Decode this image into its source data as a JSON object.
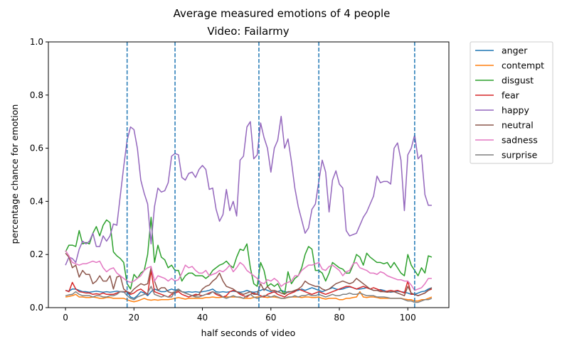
{
  "chart_data": {
    "type": "line",
    "title": "Average measured emotions of 4 people",
    "subtitle": "Video: Failarmy",
    "xlabel": "half seconds of video",
    "ylabel": "percentage chance for emotion",
    "xlim": [
      -5,
      112
    ],
    "ylim": [
      0,
      1.0
    ],
    "xticks": [
      0,
      20,
      40,
      60,
      80,
      100
    ],
    "yticks": [
      0.0,
      0.2,
      0.4,
      0.6,
      0.8,
      1.0
    ],
    "xtick_labels": [
      "0",
      "20",
      "40",
      "60",
      "80",
      "100"
    ],
    "ytick_labels": [
      "0.0",
      "0.2",
      "0.4",
      "0.6",
      "0.8",
      "1.0"
    ],
    "vlines": [
      18,
      32,
      56.5,
      74,
      102
    ],
    "vline_color": "#1f77b4",
    "grid": false,
    "legend_position": "outside-right-top",
    "x": [
      0,
      1,
      2,
      3,
      4,
      5,
      6,
      7,
      8,
      9,
      10,
      11,
      12,
      13,
      14,
      15,
      16,
      17,
      18,
      19,
      20,
      21,
      22,
      23,
      24,
      25,
      26,
      27,
      28,
      29,
      30,
      31,
      32,
      33,
      34,
      35,
      36,
      37,
      38,
      39,
      40,
      41,
      42,
      43,
      44,
      45,
      46,
      47,
      48,
      49,
      50,
      51,
      52,
      53,
      54,
      55,
      56,
      57,
      58,
      59,
      60,
      61,
      62,
      63,
      64,
      65,
      66,
      67,
      68,
      69,
      70,
      71,
      72,
      73,
      74,
      75,
      76,
      77,
      78,
      79,
      80,
      81,
      82,
      83,
      84,
      85,
      86,
      87,
      88,
      89,
      90,
      91,
      92,
      93,
      94,
      95,
      96,
      97,
      98,
      99,
      100,
      101,
      102,
      103,
      104,
      105,
      106,
      107
    ],
    "series": [
      {
        "name": "anger",
        "color": "#1f77b4",
        "values": [
          0.065,
          0.062,
          0.07,
          0.07,
          0.065,
          0.06,
          0.06,
          0.058,
          0.06,
          0.062,
          0.06,
          0.058,
          0.06,
          0.058,
          0.06,
          0.062,
          0.06,
          0.058,
          0.06,
          0.04,
          0.035,
          0.045,
          0.06,
          0.055,
          0.045,
          0.06,
          0.07,
          0.065,
          0.06,
          0.06,
          0.065,
          0.07,
          0.065,
          0.07,
          0.06,
          0.058,
          0.06,
          0.058,
          0.06,
          0.058,
          0.06,
          0.062,
          0.065,
          0.07,
          0.06,
          0.058,
          0.06,
          0.058,
          0.06,
          0.062,
          0.06,
          0.058,
          0.06,
          0.065,
          0.06,
          0.058,
          0.06,
          0.065,
          0.07,
          0.065,
          0.06,
          0.058,
          0.06,
          0.065,
          0.06,
          0.058,
          0.06,
          0.062,
          0.065,
          0.07,
          0.065,
          0.07,
          0.075,
          0.07,
          0.065,
          0.06,
          0.065,
          0.07,
          0.075,
          0.07,
          0.068,
          0.07,
          0.075,
          0.078,
          0.075,
          0.07,
          0.07,
          0.072,
          0.075,
          0.07,
          0.065,
          0.065,
          0.068,
          0.065,
          0.06,
          0.058,
          0.06,
          0.062,
          0.06,
          0.058,
          0.055,
          0.05,
          0.05,
          0.055,
          0.06,
          0.062,
          0.07,
          0.075
        ]
      },
      {
        "name": "contempt",
        "color": "#ff7f0e",
        "values": [
          0.04,
          0.042,
          0.045,
          0.05,
          0.04,
          0.04,
          0.038,
          0.038,
          0.04,
          0.038,
          0.035,
          0.035,
          0.038,
          0.038,
          0.035,
          0.035,
          0.035,
          0.035,
          0.03,
          0.025,
          0.022,
          0.025,
          0.03,
          0.035,
          0.03,
          0.028,
          0.03,
          0.028,
          0.03,
          0.03,
          0.03,
          0.032,
          0.035,
          0.038,
          0.035,
          0.032,
          0.035,
          0.035,
          0.035,
          0.035,
          0.035,
          0.038,
          0.038,
          0.04,
          0.038,
          0.038,
          0.04,
          0.04,
          0.04,
          0.04,
          0.04,
          0.038,
          0.035,
          0.035,
          0.035,
          0.038,
          0.04,
          0.04,
          0.04,
          0.038,
          0.04,
          0.04,
          0.038,
          0.035,
          0.035,
          0.038,
          0.04,
          0.04,
          0.04,
          0.038,
          0.04,
          0.04,
          0.038,
          0.038,
          0.04,
          0.035,
          0.032,
          0.035,
          0.035,
          0.035,
          0.03,
          0.03,
          0.035,
          0.035,
          0.038,
          0.04,
          0.06,
          0.04,
          0.038,
          0.04,
          0.04,
          0.038,
          0.035,
          0.035,
          0.035,
          0.035,
          0.035,
          0.035,
          0.035,
          0.032,
          0.03,
          0.03,
          0.025,
          0.025,
          0.03,
          0.03,
          0.035,
          0.04
        ]
      },
      {
        "name": "disgust",
        "color": "#2ca02c",
        "values": [
          0.21,
          0.235,
          0.235,
          0.23,
          0.29,
          0.24,
          0.245,
          0.24,
          0.28,
          0.305,
          0.27,
          0.31,
          0.33,
          0.32,
          0.21,
          0.195,
          0.185,
          0.17,
          0.09,
          0.07,
          0.125,
          0.11,
          0.13,
          0.14,
          0.2,
          0.34,
          0.17,
          0.235,
          0.19,
          0.18,
          0.15,
          0.16,
          0.14,
          0.14,
          0.1,
          0.12,
          0.13,
          0.13,
          0.12,
          0.12,
          0.12,
          0.11,
          0.12,
          0.14,
          0.15,
          0.16,
          0.165,
          0.175,
          0.16,
          0.15,
          0.19,
          0.22,
          0.215,
          0.24,
          0.15,
          0.09,
          0.08,
          0.17,
          0.14,
          0.08,
          0.09,
          0.08,
          0.09,
          0.065,
          0.05,
          0.135,
          0.09,
          0.11,
          0.12,
          0.15,
          0.2,
          0.23,
          0.22,
          0.14,
          0.14,
          0.13,
          0.1,
          0.13,
          0.17,
          0.16,
          0.15,
          0.145,
          0.13,
          0.13,
          0.16,
          0.2,
          0.19,
          0.16,
          0.205,
          0.19,
          0.18,
          0.17,
          0.17,
          0.165,
          0.17,
          0.15,
          0.17,
          0.15,
          0.13,
          0.12,
          0.2,
          0.16,
          0.14,
          0.12,
          0.15,
          0.13,
          0.195,
          0.19
        ]
      },
      {
        "name": "fear",
        "color": "#d62728",
        "values": [
          0.065,
          0.06,
          0.095,
          0.07,
          0.06,
          0.058,
          0.055,
          0.055,
          0.05,
          0.052,
          0.05,
          0.055,
          0.05,
          0.05,
          0.05,
          0.055,
          0.06,
          0.06,
          0.06,
          0.05,
          0.055,
          0.065,
          0.07,
          0.06,
          0.05,
          0.14,
          0.06,
          0.055,
          0.05,
          0.045,
          0.04,
          0.05,
          0.055,
          0.06,
          0.05,
          0.045,
          0.04,
          0.045,
          0.05,
          0.048,
          0.045,
          0.05,
          0.055,
          0.06,
          0.05,
          0.045,
          0.04,
          0.045,
          0.06,
          0.065,
          0.06,
          0.05,
          0.045,
          0.04,
          0.05,
          0.055,
          0.05,
          0.045,
          0.04,
          0.05,
          0.055,
          0.06,
          0.05,
          0.045,
          0.04,
          0.05,
          0.055,
          0.06,
          0.07,
          0.065,
          0.06,
          0.055,
          0.05,
          0.055,
          0.06,
          0.055,
          0.05,
          0.055,
          0.06,
          0.065,
          0.07,
          0.075,
          0.08,
          0.08,
          0.075,
          0.07,
          0.075,
          0.08,
          0.075,
          0.07,
          0.075,
          0.07,
          0.065,
          0.06,
          0.062,
          0.065,
          0.062,
          0.065,
          0.06,
          0.055,
          0.1,
          0.05,
          0.05,
          0.045,
          0.05,
          0.055,
          0.065,
          0.07
        ]
      },
      {
        "name": "happy",
        "color": "#9467bd",
        "values": [
          0.16,
          0.19,
          0.185,
          0.17,
          0.22,
          0.25,
          0.24,
          0.25,
          0.28,
          0.23,
          0.23,
          0.27,
          0.25,
          0.27,
          0.315,
          0.31,
          0.42,
          0.53,
          0.63,
          0.68,
          0.67,
          0.6,
          0.48,
          0.43,
          0.39,
          0.24,
          0.38,
          0.45,
          0.435,
          0.44,
          0.47,
          0.57,
          0.58,
          0.575,
          0.49,
          0.48,
          0.505,
          0.51,
          0.49,
          0.52,
          0.535,
          0.52,
          0.445,
          0.45,
          0.37,
          0.325,
          0.35,
          0.445,
          0.365,
          0.4,
          0.345,
          0.555,
          0.57,
          0.68,
          0.7,
          0.56,
          0.575,
          0.695,
          0.64,
          0.6,
          0.51,
          0.6,
          0.63,
          0.72,
          0.6,
          0.635,
          0.55,
          0.45,
          0.38,
          0.33,
          0.28,
          0.3,
          0.37,
          0.39,
          0.475,
          0.555,
          0.51,
          0.36,
          0.48,
          0.515,
          0.465,
          0.45,
          0.29,
          0.27,
          0.275,
          0.28,
          0.31,
          0.34,
          0.36,
          0.39,
          0.42,
          0.495,
          0.47,
          0.475,
          0.475,
          0.465,
          0.6,
          0.62,
          0.555,
          0.365,
          0.575,
          0.6,
          0.65,
          0.56,
          0.575,
          0.425,
          0.385,
          0.385
        ]
      },
      {
        "name": "neutral",
        "color": "#8c564b",
        "values": [
          0.205,
          0.19,
          0.15,
          0.16,
          0.115,
          0.14,
          0.125,
          0.125,
          0.09,
          0.1,
          0.12,
          0.1,
          0.1,
          0.12,
          0.07,
          0.115,
          0.12,
          0.07,
          0.06,
          0.055,
          0.07,
          0.08,
          0.09,
          0.085,
          0.09,
          0.15,
          0.1,
          0.065,
          0.075,
          0.075,
          0.06,
          0.055,
          0.06,
          0.065,
          0.06,
          0.055,
          0.05,
          0.045,
          0.045,
          0.05,
          0.07,
          0.08,
          0.085,
          0.1,
          0.11,
          0.13,
          0.1,
          0.08,
          0.075,
          0.07,
          0.06,
          0.055,
          0.05,
          0.055,
          0.06,
          0.05,
          0.05,
          0.09,
          0.065,
          0.08,
          0.065,
          0.065,
          0.06,
          0.055,
          0.05,
          0.06,
          0.06,
          0.065,
          0.07,
          0.08,
          0.1,
          0.09,
          0.085,
          0.08,
          0.08,
          0.07,
          0.065,
          0.07,
          0.08,
          0.09,
          0.095,
          0.1,
          0.095,
          0.09,
          0.095,
          0.11,
          0.1,
          0.09,
          0.08,
          0.07,
          0.065,
          0.065,
          0.06,
          0.06,
          0.058,
          0.06,
          0.06,
          0.055,
          0.05,
          0.045,
          0.08,
          0.055,
          0.05,
          0.045,
          0.05,
          0.055,
          0.065,
          0.075
        ]
      },
      {
        "name": "sadness",
        "color": "#e377c2",
        "values": [
          0.215,
          0.195,
          0.17,
          0.165,
          0.16,
          0.165,
          0.165,
          0.17,
          0.175,
          0.17,
          0.175,
          0.15,
          0.135,
          0.145,
          0.15,
          0.13,
          0.12,
          0.11,
          0.1,
          0.095,
          0.1,
          0.11,
          0.12,
          0.14,
          0.15,
          0.155,
          0.1,
          0.12,
          0.115,
          0.11,
          0.1,
          0.11,
          0.1,
          0.105,
          0.13,
          0.16,
          0.15,
          0.155,
          0.14,
          0.13,
          0.13,
          0.14,
          0.12,
          0.125,
          0.13,
          0.14,
          0.135,
          0.145,
          0.16,
          0.135,
          0.15,
          0.17,
          0.16,
          0.14,
          0.13,
          0.12,
          0.11,
          0.095,
          0.09,
          0.105,
          0.1,
          0.11,
          0.1,
          0.08,
          0.09,
          0.095,
          0.1,
          0.12,
          0.12,
          0.14,
          0.15,
          0.16,
          0.16,
          0.165,
          0.17,
          0.145,
          0.14,
          0.155,
          0.16,
          0.15,
          0.14,
          0.12,
          0.135,
          0.14,
          0.165,
          0.17,
          0.15,
          0.145,
          0.14,
          0.13,
          0.13,
          0.125,
          0.135,
          0.13,
          0.12,
          0.115,
          0.11,
          0.105,
          0.105,
          0.1,
          0.1,
          0.085,
          0.065,
          0.07,
          0.075,
          0.09,
          0.11,
          0.11
        ]
      },
      {
        "name": "surprise",
        "color": "#7f7f7f",
        "values": [
          0.045,
          0.048,
          0.05,
          0.06,
          0.05,
          0.045,
          0.045,
          0.045,
          0.04,
          0.045,
          0.045,
          0.04,
          0.04,
          0.045,
          0.045,
          0.05,
          0.06,
          0.06,
          0.045,
          0.035,
          0.03,
          0.04,
          0.045,
          0.05,
          0.055,
          0.08,
          0.05,
          0.045,
          0.04,
          0.045,
          0.04,
          0.04,
          0.06,
          0.07,
          0.06,
          0.055,
          0.05,
          0.045,
          0.04,
          0.04,
          0.045,
          0.05,
          0.05,
          0.06,
          0.055,
          0.05,
          0.04,
          0.035,
          0.04,
          0.045,
          0.04,
          0.04,
          0.035,
          0.045,
          0.05,
          0.04,
          0.035,
          0.04,
          0.045,
          0.045,
          0.04,
          0.045,
          0.04,
          0.035,
          0.035,
          0.04,
          0.04,
          0.045,
          0.04,
          0.045,
          0.045,
          0.05,
          0.045,
          0.045,
          0.05,
          0.045,
          0.04,
          0.045,
          0.05,
          0.045,
          0.045,
          0.05,
          0.05,
          0.055,
          0.05,
          0.05,
          0.055,
          0.05,
          0.045,
          0.045,
          0.045,
          0.04,
          0.04,
          0.04,
          0.038,
          0.035,
          0.035,
          0.035,
          0.035,
          0.03,
          0.025,
          0.025,
          0.02,
          0.02,
          0.025,
          0.03,
          0.03,
          0.035
        ]
      }
    ]
  }
}
